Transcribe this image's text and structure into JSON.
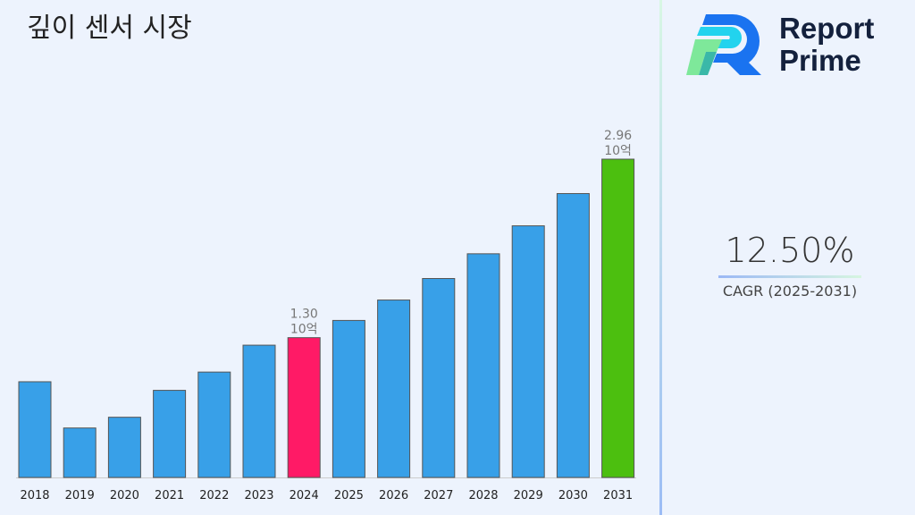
{
  "title": "깊이 센서 시장",
  "logo": {
    "line1": "Report",
    "line2": "Prime"
  },
  "cagr": {
    "value": "12.50%",
    "label": "CAGR (2025-2031)"
  },
  "chart_data": {
    "type": "bar",
    "title": "깊이 센서 시장",
    "categories": [
      "2018",
      "2019",
      "2020",
      "2021",
      "2022",
      "2023",
      "2024",
      "2025",
      "2026",
      "2027",
      "2028",
      "2029",
      "2030",
      "2031"
    ],
    "values": [
      0.89,
      0.46,
      0.56,
      0.81,
      0.98,
      1.23,
      1.3,
      1.46,
      1.65,
      1.85,
      2.08,
      2.34,
      2.64,
      2.96
    ],
    "unit": "10억",
    "data_labels": [
      {
        "year": "2024",
        "value": "1.30",
        "unit": "10억"
      },
      {
        "year": "2031",
        "value": "2.96",
        "unit": "10억"
      }
    ],
    "colors": {
      "default": "#38a0e8",
      "highlight_2024": "#ff1a66",
      "highlight_2031": "#4cbf0f"
    },
    "ylim": [
      0,
      3.0
    ],
    "grid": false,
    "legend": "none"
  }
}
